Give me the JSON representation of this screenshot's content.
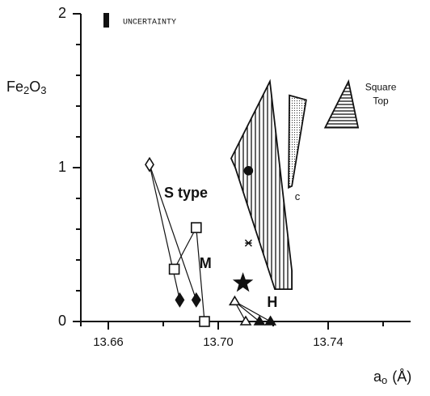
{
  "chart_data": {
    "type": "scatter",
    "y_label": [
      "Fe",
      "2",
      "O",
      "3"
    ],
    "x_label": [
      "a",
      "o",
      "(Å)"
    ],
    "legend_text": "UNCERTAINTY",
    "xlim": [
      13.65,
      13.77
    ],
    "ylim": [
      0,
      2
    ],
    "xticks": [
      {
        "value": 13.66,
        "label": "13.66"
      },
      {
        "value": 13.7,
        "label": "13.70"
      },
      {
        "value": 13.74,
        "label": "13.74"
      }
    ],
    "x_minor_ticks": [
      13.68,
      13.72,
      13.76
    ],
    "yticks": [
      0,
      1,
      2
    ],
    "y_minor_ticks": [
      0.2,
      0.4,
      0.6,
      0.8,
      1.2,
      1.4,
      1.6,
      1.8
    ],
    "series": [
      {
        "name": "S type",
        "x": [
          13.675,
          13.686,
          13.692
        ],
        "values": [
          1.02,
          0.14,
          0.14
        ],
        "markers": [
          "diamond-open",
          "diamond",
          "diamond"
        ]
      },
      {
        "name": "M",
        "x": [
          13.692,
          13.684,
          13.695
        ],
        "values": [
          0.61,
          0.34,
          0.0
        ],
        "markers": [
          "square-open",
          "square-open",
          "square-open"
        ]
      },
      {
        "name": "H",
        "x": [
          13.706,
          13.71,
          13.715,
          13.719
        ],
        "values": [
          0.13,
          0.0,
          0.0,
          0.0
        ],
        "markers": [
          "triangle-open",
          "triangle-open",
          "triangle",
          "triangle"
        ]
      }
    ],
    "points": [
      {
        "x": 13.709,
        "y": 0.25,
        "marker": "star"
      },
      {
        "x": 13.711,
        "y": 0.98,
        "marker": "circle"
      },
      {
        "x": 13.711,
        "y": 0.51,
        "marker": "cross"
      }
    ],
    "regions": [
      {
        "x": [
          13.7047,
          13.7188,
          13.7268,
          13.7268,
          13.7206,
          13.7062
        ],
        "y": [
          1.06,
          1.56,
          0.33,
          0.21,
          0.21,
          1.0
        ],
        "fill": "vertical-hatch"
      },
      {
        "name": "c",
        "x": [
          13.7259,
          13.732,
          13.7268,
          13.7256
        ],
        "y": [
          1.47,
          1.44,
          0.88,
          0.87
        ],
        "fill": "dots"
      },
      {
        "name": "Square Top",
        "x": [
          13.7474,
          13.7389,
          13.7509
        ],
        "y": [
          1.56,
          1.26,
          1.26
        ],
        "fill": "horizontal-hatch"
      }
    ]
  }
}
